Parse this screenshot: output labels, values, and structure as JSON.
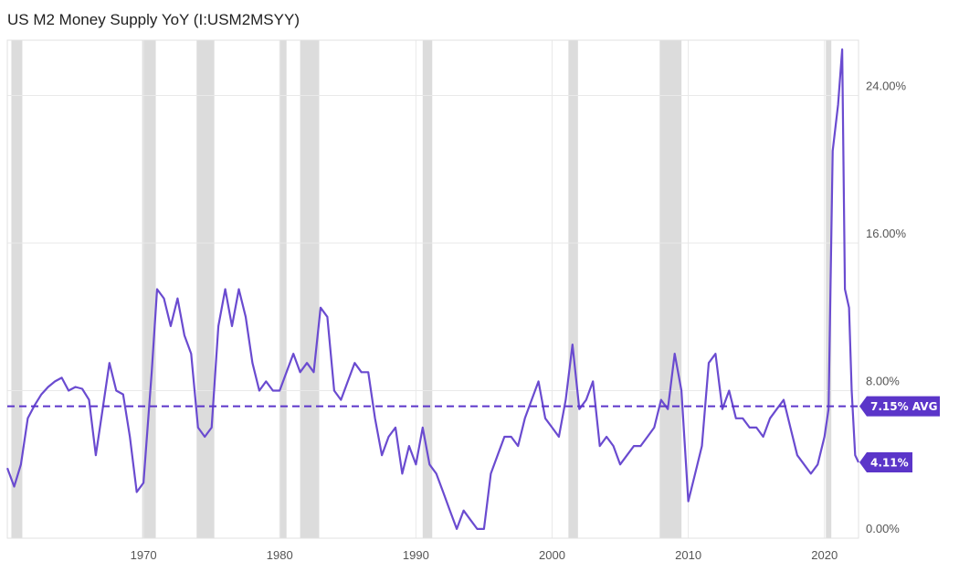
{
  "title": "US M2 Money Supply YoY (I:USM2MSYY)",
  "colors": {
    "line": "#6a4bd0",
    "flag": "#5b35c9",
    "recession": "#dcdcdc",
    "grid": "#e9e9e9",
    "axis_text": "#555555"
  },
  "chart_data": {
    "type": "line",
    "title": "US M2 Money Supply YoY (I:USM2MSYY)",
    "xlabel": "",
    "ylabel": "",
    "xlim": [
      1960,
      2022.5
    ],
    "ylim": [
      0,
      27
    ],
    "x_ticks": [
      1970,
      1980,
      1990,
      2000,
      2010,
      2020
    ],
    "y_ticks": [
      {
        "value": 0,
        "label": "0.00%"
      },
      {
        "value": 8,
        "label": "8.00%"
      },
      {
        "value": 16,
        "label": "16.00%"
      },
      {
        "value": 24,
        "label": "24.00%"
      }
    ],
    "grid": true,
    "recessions": [
      [
        1960.3,
        1961.1
      ],
      [
        1969.9,
        1970.9
      ],
      [
        1973.9,
        1975.2
      ],
      [
        1980.0,
        1980.5
      ],
      [
        1981.5,
        1982.9
      ],
      [
        1990.5,
        1991.2
      ],
      [
        2001.2,
        2001.9
      ],
      [
        2007.9,
        2009.5
      ],
      [
        2020.1,
        2020.4
      ]
    ],
    "average": {
      "value": 7.15,
      "label": "7.15% AVG"
    },
    "latest": {
      "value": 4.11,
      "label": "4.11%"
    },
    "series": [
      {
        "x": [
          1960.0,
          1960.5,
          1961.0,
          1961.5,
          1962.0,
          1962.5,
          1963.0,
          1963.5,
          1964.0,
          1964.5,
          1965.0,
          1965.5,
          1966.0,
          1966.5,
          1967.0,
          1967.5,
          1968.0,
          1968.5,
          1969.0,
          1969.5,
          1970.0,
          1970.3,
          1970.6,
          1971.0,
          1971.5,
          1972.0,
          1972.5,
          1973.0,
          1973.5,
          1974.0,
          1974.5,
          1975.0,
          1975.5,
          1976.0,
          1976.5,
          1977.0,
          1977.5,
          1978.0,
          1978.5,
          1979.0,
          1979.5,
          1980.0,
          1980.5,
          1981.0,
          1981.5,
          1982.0,
          1982.5,
          1983.0,
          1983.5,
          1984.0,
          1984.5,
          1985.0,
          1985.5,
          1986.0,
          1986.5,
          1987.0,
          1987.5,
          1988.0,
          1988.5,
          1989.0,
          1989.5,
          1990.0,
          1990.5,
          1991.0,
          1991.5,
          1992.0,
          1992.5,
          1993.0,
          1993.5,
          1994.0,
          1994.5,
          1995.0,
          1995.5,
          1996.0,
          1996.5,
          1997.0,
          1997.5,
          1998.0,
          1998.5,
          1999.0,
          1999.5,
          2000.0,
          2000.5,
          2001.0,
          2001.5,
          2002.0,
          2002.5,
          2003.0,
          2003.5,
          2004.0,
          2004.5,
          2005.0,
          2005.5,
          2006.0,
          2006.5,
          2007.0,
          2007.5,
          2008.0,
          2008.5,
          2009.0,
          2009.5,
          2010.0,
          2010.5,
          2011.0,
          2011.5,
          2012.0,
          2012.5,
          2013.0,
          2013.5,
          2014.0,
          2014.5,
          2015.0,
          2015.5,
          2016.0,
          2016.5,
          2017.0,
          2017.5,
          2018.0,
          2018.5,
          2019.0,
          2019.5,
          2020.0,
          2020.3,
          2020.6,
          2021.0,
          2021.3,
          2021.5,
          2021.8,
          2022.0,
          2022.25,
          2022.5
        ],
        "values": [
          3.8,
          2.8,
          4.0,
          6.5,
          7.2,
          7.8,
          8.2,
          8.5,
          8.7,
          8.0,
          8.2,
          8.1,
          7.5,
          4.5,
          7.0,
          9.5,
          8.0,
          7.8,
          5.5,
          2.5,
          3.0,
          6.0,
          9.0,
          13.5,
          13.0,
          11.5,
          13.0,
          11.0,
          10.0,
          6.0,
          5.5,
          6.0,
          11.5,
          13.5,
          11.5,
          13.5,
          12.0,
          9.5,
          8.0,
          8.5,
          8.0,
          8.0,
          9.0,
          10.0,
          9.0,
          9.5,
          9.0,
          12.5,
          12.0,
          8.0,
          7.5,
          8.5,
          9.5,
          9.0,
          9.0,
          6.5,
          4.5,
          5.5,
          6.0,
          3.5,
          5.0,
          4.0,
          6.0,
          4.0,
          3.5,
          2.5,
          1.5,
          0.5,
          1.5,
          1.0,
          0.5,
          0.5,
          3.5,
          4.5,
          5.5,
          5.5,
          5.0,
          6.5,
          7.5,
          8.5,
          6.5,
          6.0,
          5.5,
          7.5,
          10.5,
          7.0,
          7.5,
          8.5,
          5.0,
          5.5,
          5.0,
          4.0,
          4.5,
          5.0,
          5.0,
          5.5,
          6.0,
          7.5,
          7.0,
          10.0,
          8.0,
          2.0,
          3.5,
          5.0,
          9.5,
          10.0,
          7.0,
          8.0,
          6.5,
          6.5,
          6.0,
          6.0,
          5.5,
          6.5,
          7.0,
          7.5,
          6.0,
          4.5,
          4.0,
          3.5,
          4.0,
          5.5,
          7.0,
          21.0,
          23.5,
          26.5,
          13.5,
          12.5,
          8.0,
          4.5,
          4.11
        ]
      }
    ]
  }
}
